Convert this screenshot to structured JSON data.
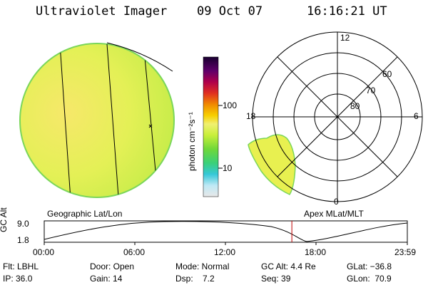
{
  "header": {
    "instrument": "Ultraviolet Imager",
    "date": "09 Oct 07",
    "time": "16:16:21 UT"
  },
  "colorbar": {
    "label": "photon cm⁻²s⁻¹",
    "ticks": [
      "100",
      "10"
    ]
  },
  "geo_panel": {
    "label": "Geographic Lat/Lon"
  },
  "polar_panel": {
    "label": "Apex MLat/MLT",
    "mlt_labels": {
      "top": "12",
      "left": "18",
      "right": "6",
      "bottom": "0"
    },
    "lat_labels": [
      "60",
      "70",
      "80"
    ]
  },
  "timeline": {
    "ylabel": "GC Alt",
    "ymax": "9.0",
    "ymin": "1.8",
    "xticks": [
      "00:00",
      "06:00",
      "12:00",
      "18:00",
      "23:59"
    ],
    "current_time_fraction": 0.682
  },
  "info": {
    "filter": "Flt: LBHL",
    "ip": "IP: 36.0",
    "door": "Door: Open",
    "gain": "Gain: 14",
    "mode": "Mode: Normal",
    "dsp": "Dsp:    7.2",
    "gc_alt": "GC Alt: 4.4 Re",
    "seq": "Seq: 39",
    "glat": "GLat: −36.8",
    "glon": "GLon:  70.9"
  },
  "colors": {
    "disk_fill": "#e8f050",
    "disk_edge": "#7ad65a",
    "marker_line": "#c00000"
  }
}
